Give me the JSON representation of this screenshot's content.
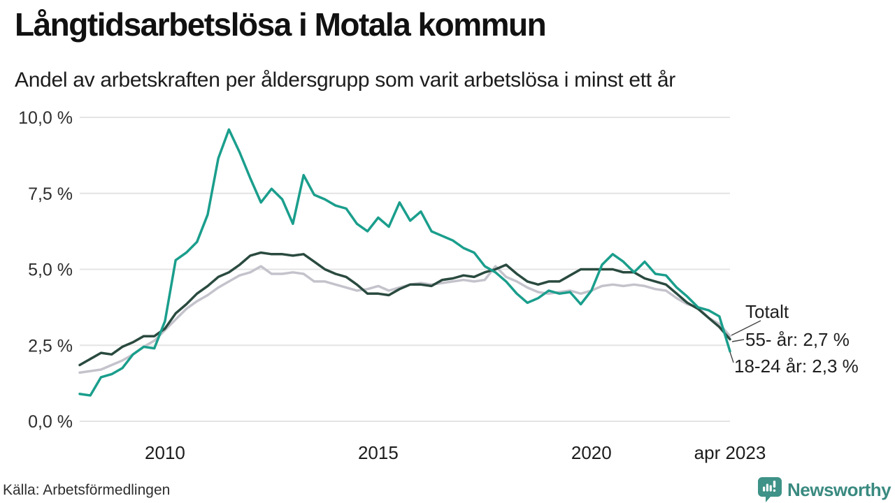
{
  "title": "Långtidsarbetslösa i Motala kommun",
  "subtitle": "Andel av arbetskraften per åldersgrupp som varit arbetslösa i minst ett år",
  "annotations": {
    "totalt": "Totalt",
    "older": "55- år: 2,7 %",
    "younger": "18-24 år: 2,3 %"
  },
  "footer": {
    "source": "Källa: Arbetsförmedlingen",
    "brand": "Newsworthy"
  },
  "colors": {
    "young_line": "#1a9e8c",
    "old_line": "#2a4a3f",
    "total_line": "#c4c3cc",
    "gridline": "#e4e4e4",
    "leader_line": "#444444",
    "brand_icon": "#3e9287",
    "brand_text": "#3a8a80",
    "axis_text": "#2e2e2e"
  },
  "chart_data": {
    "type": "line",
    "title": "Långtidsarbetslösa i Motala kommun",
    "subtitle": "Andel av arbetskraften per åldersgrupp som varit arbetslösa i minst ett år",
    "unit": "%",
    "grid": "horizontal",
    "legend_position": "end-of-line annotations at right",
    "ylim": [
      0,
      10
    ],
    "yticks": [
      {
        "value": 0,
        "label": "0,0 %"
      },
      {
        "value": 2.5,
        "label": "2,5 %"
      },
      {
        "value": 5,
        "label": "5,0 %"
      },
      {
        "value": 7.5,
        "label": "7,5 %"
      },
      {
        "value": 10,
        "label": "10,0 %"
      }
    ],
    "xticks": [
      {
        "x": 2010,
        "label": "2010"
      },
      {
        "x": 2015,
        "label": "2015"
      },
      {
        "x": 2020,
        "label": "2020"
      },
      {
        "x": 2023.25,
        "label": "apr 2023"
      }
    ],
    "x_note": "decimal years, quarterly samples Jan 2008 - Apr 2023, values estimated from plot",
    "x": [
      2008.0,
      2008.25,
      2008.5,
      2008.75,
      2009.0,
      2009.25,
      2009.5,
      2009.75,
      2010.0,
      2010.25,
      2010.5,
      2010.75,
      2011.0,
      2011.25,
      2011.5,
      2011.75,
      2012.0,
      2012.25,
      2012.5,
      2012.75,
      2013.0,
      2013.25,
      2013.5,
      2013.75,
      2014.0,
      2014.25,
      2014.5,
      2014.75,
      2015.0,
      2015.25,
      2015.5,
      2015.75,
      2016.0,
      2016.25,
      2016.5,
      2016.75,
      2017.0,
      2017.25,
      2017.5,
      2017.75,
      2018.0,
      2018.25,
      2018.5,
      2018.75,
      2019.0,
      2019.25,
      2019.5,
      2019.75,
      2020.0,
      2020.25,
      2020.5,
      2020.75,
      2021.0,
      2021.25,
      2021.5,
      2021.75,
      2022.0,
      2022.25,
      2022.5,
      2022.75,
      2023.0,
      2023.25
    ],
    "series": [
      {
        "name": "Totalt",
        "color": "#c4c3cc",
        "end_label": "Totalt",
        "values": [
          1.6,
          1.65,
          1.7,
          1.85,
          2.0,
          2.2,
          2.45,
          2.65,
          3.0,
          3.35,
          3.7,
          3.95,
          4.15,
          4.4,
          4.6,
          4.8,
          4.9,
          5.1,
          4.85,
          4.85,
          4.9,
          4.85,
          4.6,
          4.6,
          4.5,
          4.4,
          4.3,
          4.35,
          4.45,
          4.3,
          4.4,
          4.5,
          4.55,
          4.5,
          4.55,
          4.6,
          4.65,
          4.6,
          4.65,
          5.1,
          4.75,
          4.6,
          4.4,
          4.25,
          4.2,
          4.25,
          4.3,
          4.2,
          4.3,
          4.45,
          4.5,
          4.45,
          4.5,
          4.45,
          4.35,
          4.3,
          4.05,
          3.85,
          3.75,
          3.4,
          3.2,
          2.8
        ]
      },
      {
        "name": "55- år",
        "color": "#2a4a3f",
        "end_label": "55- år: 2,7 %",
        "end_value": 2.7,
        "values": [
          1.85,
          2.05,
          2.25,
          2.2,
          2.45,
          2.6,
          2.8,
          2.8,
          3.05,
          3.55,
          3.85,
          4.2,
          4.45,
          4.75,
          4.9,
          5.15,
          5.45,
          5.55,
          5.5,
          5.5,
          5.45,
          5.5,
          5.25,
          5.0,
          4.85,
          4.75,
          4.5,
          4.2,
          4.2,
          4.15,
          4.35,
          4.5,
          4.5,
          4.45,
          4.65,
          4.7,
          4.8,
          4.75,
          4.9,
          5.0,
          5.15,
          4.85,
          4.6,
          4.5,
          4.6,
          4.6,
          4.8,
          5.0,
          5.0,
          5.0,
          5.0,
          4.9,
          4.9,
          4.7,
          4.6,
          4.5,
          4.2,
          3.9,
          3.7,
          3.4,
          3.1,
          2.7
        ]
      },
      {
        "name": "18-24 år",
        "color": "#1a9e8c",
        "end_label": "18-24 år: 2,3 %",
        "end_value": 2.3,
        "values": [
          0.9,
          0.85,
          1.45,
          1.55,
          1.75,
          2.2,
          2.45,
          2.4,
          3.3,
          5.3,
          5.55,
          5.9,
          6.8,
          8.65,
          9.6,
          8.85,
          8.0,
          7.2,
          7.65,
          7.3,
          6.5,
          8.1,
          7.45,
          7.3,
          7.1,
          7.0,
          6.5,
          6.25,
          6.7,
          6.4,
          7.2,
          6.6,
          6.9,
          6.25,
          6.1,
          5.95,
          5.7,
          5.55,
          5.1,
          4.9,
          4.6,
          4.2,
          3.9,
          4.05,
          4.3,
          4.2,
          4.25,
          3.85,
          4.3,
          5.15,
          5.5,
          5.25,
          4.9,
          5.25,
          4.85,
          4.8,
          4.4,
          4.1,
          3.75,
          3.65,
          3.45,
          2.3
        ]
      }
    ]
  }
}
